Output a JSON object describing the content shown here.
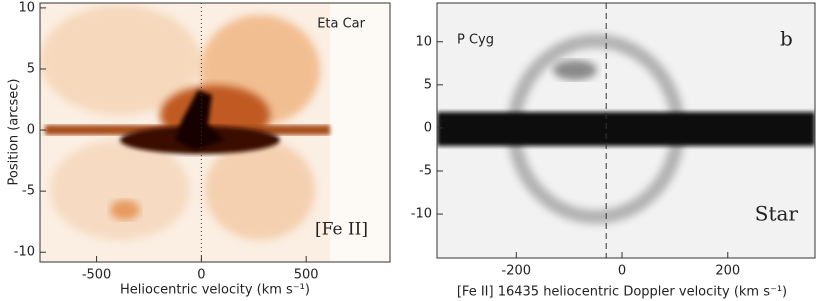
{
  "chart_data": [
    {
      "type": "image",
      "x_label": "Heliocentric velocity (km s⁻¹)",
      "y_label": "Position (arcsec)",
      "annotations": [
        "Eta Car",
        "[Fe II]"
      ],
      "xlim": [
        -770,
        900
      ],
      "ylim": [
        -10.8,
        10.4
      ],
      "xticks": [
        -500,
        0,
        500
      ],
      "yticks": [
        -10,
        -5,
        0,
        5,
        10
      ],
      "vline": 0
    },
    {
      "type": "image",
      "x_label": "[Fe II] 16435 heliocentric Doppler velocity (km s⁻¹)",
      "annotations": [
        "P Cyg",
        "b",
        "Star"
      ],
      "xlim": [
        -350,
        365
      ],
      "ylim": [
        -15.1,
        14.5
      ],
      "xticks": [
        -200,
        0,
        200
      ],
      "yticks": [
        -10,
        -5,
        0,
        5,
        10
      ],
      "vline": -30
    }
  ]
}
